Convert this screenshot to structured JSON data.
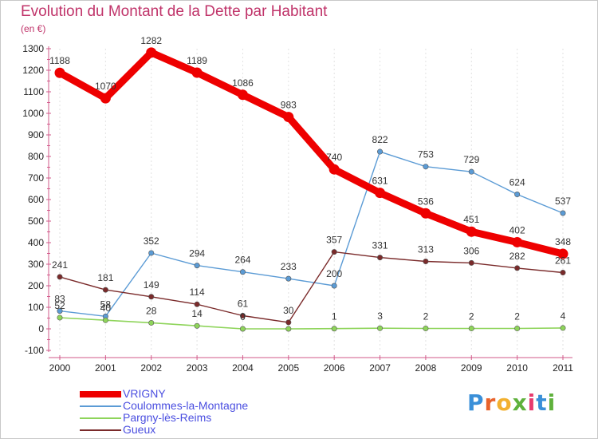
{
  "title": "Evolution du Montant de la Dette par Habitant",
  "subtitle": "(en €)",
  "logo": {
    "text": "Proxiti",
    "letter_colors": [
      "#3a8fd8",
      "#e8622a",
      "#f2b02e",
      "#5fb13c",
      "#e83a6e",
      "#3a8fd8",
      "#5fb13c"
    ]
  },
  "chart_data": {
    "type": "line",
    "categories": [
      "2000",
      "2001",
      "2002",
      "2003",
      "2004",
      "2005",
      "2006",
      "2007",
      "2008",
      "2009",
      "2010",
      "2011"
    ],
    "ylim": [
      -100,
      1300
    ],
    "yticks": [
      -100,
      0,
      100,
      200,
      300,
      400,
      500,
      600,
      700,
      800,
      900,
      1000,
      1100,
      1200,
      1300
    ],
    "grid": "vertical dashed",
    "legend_position": "bottom-left",
    "series": [
      {
        "name": "VRIGNY",
        "values": [
          1188,
          1070,
          1282,
          1189,
          1086,
          983,
          740,
          631,
          536,
          451,
          402,
          348
        ],
        "labels": [
          "1188",
          "1070",
          "1282",
          "1189",
          "1086",
          "983",
          "740",
          "631",
          "536",
          "451",
          "402",
          "348"
        ],
        "color": "#ee0000"
      },
      {
        "name": "Coulommes-la-Montagne",
        "values": [
          83,
          58,
          352,
          294,
          264,
          233,
          200,
          822,
          753,
          729,
          624,
          537
        ],
        "labels": [
          "83",
          "58",
          "352",
          "294",
          "264",
          "233",
          "200",
          "822",
          "753",
          "729",
          "624",
          "537"
        ],
        "color": "#5b9bd5"
      },
      {
        "name": "Pargny-lès-Reims",
        "values": [
          52,
          40,
          28,
          14,
          0,
          0,
          1,
          3,
          2,
          2,
          2,
          4
        ],
        "labels": [
          "52",
          "40",
          "28",
          "14",
          "0",
          "",
          "1",
          "3",
          "2",
          "2",
          "2",
          "4"
        ],
        "color": "#8ed45a"
      },
      {
        "name": "Gueux",
        "values": [
          241,
          181,
          149,
          114,
          61,
          30,
          357,
          331,
          313,
          306,
          282,
          261
        ],
        "labels": [
          "241",
          "181",
          "149",
          "114",
          "61",
          "30",
          "357",
          "331",
          "313",
          "306",
          "282",
          "261"
        ],
        "color": "#7a2a2a"
      }
    ]
  }
}
